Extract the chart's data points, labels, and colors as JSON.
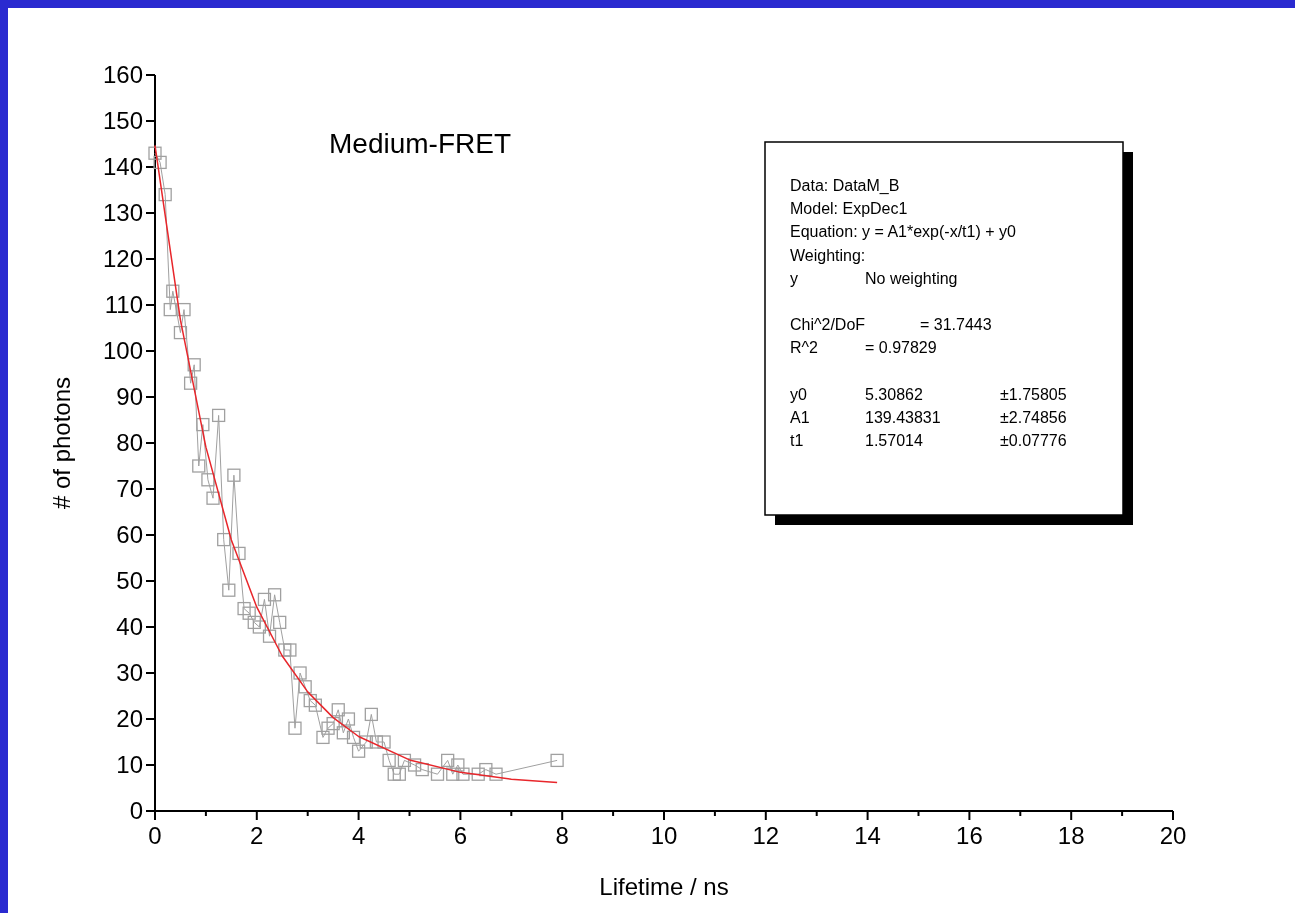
{
  "chart_data": {
    "type": "line",
    "title": "Medium-FRET",
    "xlabel": "Lifetime / ns",
    "ylabel": "# of photons",
    "xlim": [
      0,
      20
    ],
    "ylim": [
      0,
      160
    ],
    "xticks": [
      0,
      {
        "value": 1,
        "label": null
      },
      2,
      {
        "value": 3,
        "label": null
      },
      4,
      {
        "value": 5,
        "label": null
      },
      6,
      {
        "value": 7,
        "label": null
      },
      8,
      {
        "value": 9,
        "label": null
      },
      10,
      {
        "value": 11,
        "label": null
      },
      12,
      {
        "value": 13,
        "label": null
      },
      14,
      {
        "value": 15,
        "label": null
      },
      16,
      {
        "value": 17,
        "label": null
      },
      18,
      {
        "value": 19,
        "label": null
      },
      20
    ],
    "yticks": [
      0,
      10,
      20,
      30,
      40,
      50,
      60,
      70,
      80,
      90,
      100,
      110,
      120,
      130,
      140,
      150,
      160
    ],
    "grid": false,
    "series": [
      {
        "marker": "square",
        "color": "#a0a0a0",
        "x": [
          0,
          0.1,
          0.2,
          0.3,
          0.35,
          0.5,
          0.57,
          0.7,
          0.77,
          0.86,
          0.94,
          1.04,
          1.14,
          1.25,
          1.35,
          1.45,
          1.55,
          1.65,
          1.75,
          1.85,
          1.95,
          2.05,
          2.15,
          2.25,
          2.35,
          2.45,
          2.55,
          2.65,
          2.75,
          2.85,
          2.95,
          3.05,
          3.15,
          3.3,
          3.4,
          3.5,
          3.6,
          3.7,
          3.8,
          3.9,
          4.0,
          4.15,
          4.25,
          4.35,
          4.5,
          4.6,
          4.7,
          4.8,
          4.9,
          5.1,
          5.25,
          5.55,
          5.75,
          5.85,
          5.95,
          6.05,
          6.35,
          6.5,
          6.7,
          7.9
        ],
        "values": [
          143,
          141,
          134,
          109,
          113,
          104,
          109,
          93,
          97,
          75,
          84,
          72,
          68,
          86,
          59,
          48,
          73,
          56,
          44,
          43,
          41,
          40,
          46,
          38,
          47,
          41,
          35,
          35,
          18,
          30,
          27,
          24,
          23,
          16,
          18,
          19,
          22,
          17,
          20,
          16,
          13,
          15,
          21,
          15,
          15,
          11,
          8,
          8,
          11,
          10,
          9,
          8,
          11,
          8,
          10,
          8,
          8,
          9,
          8,
          11
        ]
      },
      {
        "marker": "none",
        "color": "#e8262b",
        "x": [
          0,
          0.5,
          1,
          1.5,
          2,
          2.5,
          3,
          3.5,
          4,
          5,
          6,
          7,
          7.9
        ],
        "values": [
          144.7,
          106.7,
          79.1,
          58.9,
          44.3,
          33.7,
          25.9,
          20.3,
          16.2,
          11.1,
          8.4,
          6.9,
          6.2
        ]
      }
    ],
    "annotations": [
      "Data: DataM_B",
      "Model: ExpDec1",
      "Equation: y = A1*exp(-x/t1) + y0",
      "Weighting:",
      "y\tNo weighting",
      "Chi^2/DoF\t= 31.7443",
      "R^2\t=  0.97829",
      "y0\t5.30862\t±1.75805",
      "A1\t139.43831\t±2.74856",
      "t1\t1.57014\t±0.07776"
    ]
  }
}
